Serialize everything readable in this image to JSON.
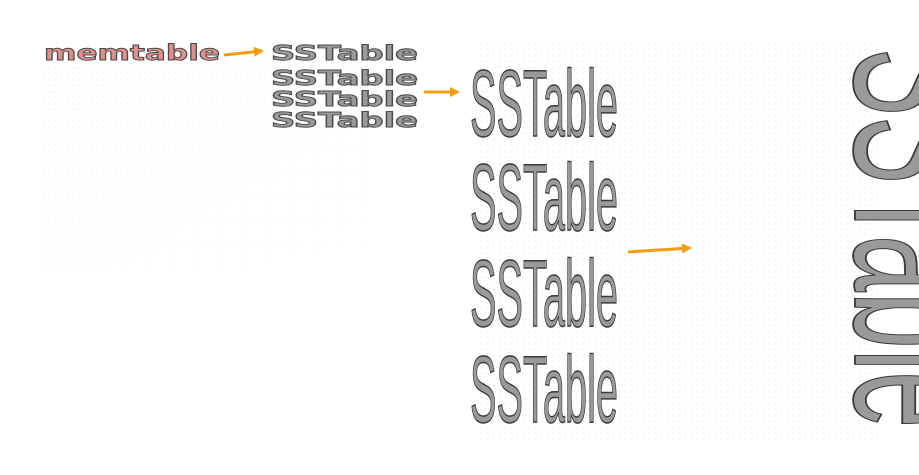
{
  "diagram": {
    "memtable": {
      "label": "memtable",
      "fill": "#e08f8f"
    },
    "level1": {
      "labels": [
        "SSTable",
        "SSTable",
        "SSTable",
        "SSTable"
      ]
    },
    "level2": {
      "labels": [
        "SSTable",
        "SSTable",
        "SSTable",
        "SSTable"
      ]
    },
    "level3": {
      "label": "SSTable"
    },
    "colors": {
      "text_fill": "#9a9a9a",
      "text_outline": "#4a4a4a",
      "arrow": "#f39c12",
      "background_dots": "#e6e6e6"
    },
    "arrows": [
      {
        "name": "arrow-memtable-to-level1",
        "icon": "arrow-right-icon"
      },
      {
        "name": "arrow-level1-to-level2",
        "icon": "arrow-right-icon"
      },
      {
        "name": "arrow-level2-to-level3",
        "icon": "arrow-right-icon"
      }
    ]
  }
}
